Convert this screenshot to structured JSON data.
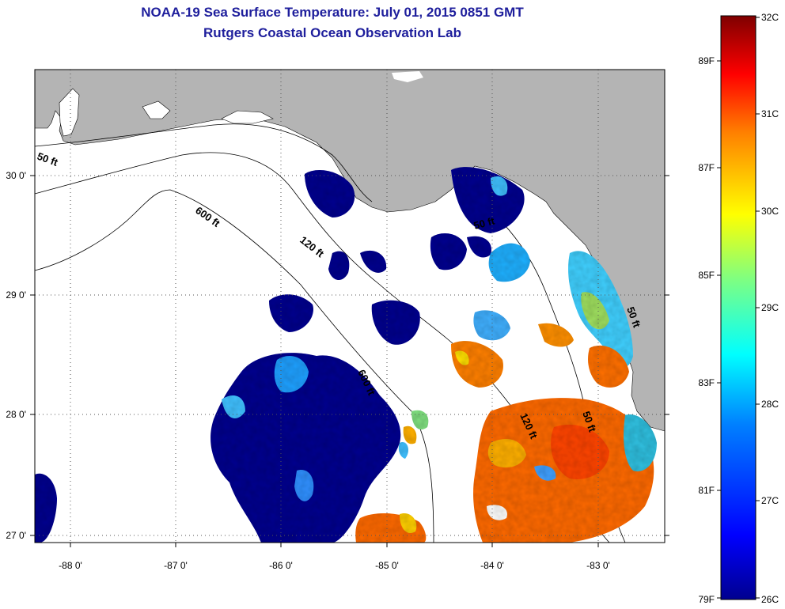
{
  "header": {
    "title": "NOAA-19 Sea Surface Temperature:  July 01, 2015 0851 GMT",
    "subtitle": "Rutgers Coastal Ocean Observation Lab"
  },
  "map": {
    "x_ticks": [
      "-88 0'",
      "-87 0'",
      "-86 0'",
      "-85 0'",
      "-84 0'",
      "-83 0'"
    ],
    "y_ticks": [
      "30 0'",
      "29 0'",
      "28 0'",
      "27 0'"
    ],
    "contours": [
      "50 ft",
      "600 ft",
      "120 ft",
      "50 ft",
      "600 ft",
      "120 ft",
      "50 ft",
      "50 ft"
    ]
  },
  "colorbar": {
    "celsius": [
      "32C",
      "31C",
      "30C",
      "29C",
      "28C",
      "27C",
      "26C"
    ],
    "fahrenheit": [
      "89F",
      "87F",
      "85F",
      "83F",
      "81F",
      "79F"
    ],
    "colors": [
      "#7f0000",
      "#ff0000",
      "#ff8000",
      "#ffff00",
      "#80ff80",
      "#00ffff",
      "#0080ff",
      "#0000ff",
      "#00008f"
    ]
  }
}
